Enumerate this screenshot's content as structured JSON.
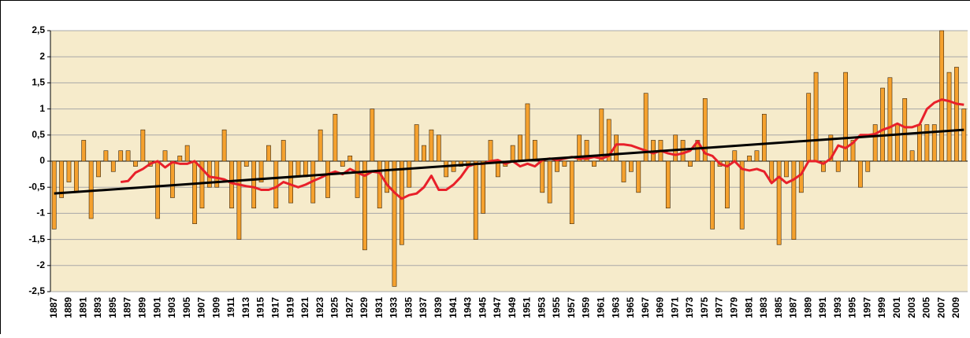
{
  "chart_data": {
    "type": "bar",
    "categories": [
      "1887",
      null,
      "1889",
      null,
      "1891",
      null,
      "1893",
      null,
      "1895",
      null,
      "1897",
      null,
      "1899",
      null,
      "1901",
      null,
      "1903",
      null,
      "1905",
      null,
      "1907",
      null,
      "1909",
      null,
      "1911",
      null,
      "1913",
      null,
      "1915",
      null,
      "1917",
      null,
      "1919",
      null,
      "1921",
      null,
      "1923",
      null,
      "1925",
      null,
      "1927",
      null,
      "1929",
      null,
      "1931",
      null,
      "1933",
      null,
      "1935",
      null,
      "1937",
      null,
      "1939",
      null,
      "1941",
      null,
      "1943",
      null,
      "1945",
      null,
      "1947",
      null,
      "1949",
      null,
      "1951",
      null,
      "1953",
      null,
      "1955",
      null,
      "1957",
      null,
      "1959",
      null,
      "1961",
      null,
      "1963",
      null,
      "1965",
      null,
      "1967",
      null,
      "1969",
      null,
      "1971",
      null,
      "1973",
      null,
      "1975",
      null,
      "1977",
      null,
      "1979",
      null,
      "1981",
      null,
      "1983",
      null,
      "1985",
      null,
      "1987",
      null,
      "1989",
      null,
      "1991",
      null,
      "1993",
      null,
      "1995",
      null,
      "1997",
      null,
      "1999",
      null,
      "2001",
      null,
      "2003",
      null,
      "2005",
      null,
      "2007",
      null,
      "2009",
      null
    ],
    "series": [
      {
        "type": "bar",
        "color": "#f5a12e",
        "values": [
          -1.3,
          -0.7,
          -0.4,
          -0.6,
          0.4,
          -1.1,
          -0.3,
          0.2,
          -0.2,
          0.2,
          0.2,
          -0.1,
          0.6,
          -0.1,
          -1.1,
          0.2,
          -0.7,
          0.1,
          0.3,
          -1.2,
          -0.9,
          -0.5,
          -0.5,
          0.6,
          -0.9,
          -1.5,
          -0.1,
          -0.9,
          -0.4,
          0.3,
          -0.9,
          0.4,
          -0.8,
          -0.3,
          -0.3,
          -0.8,
          0.6,
          -0.7,
          0.9,
          -0.1,
          0.1,
          -0.7,
          -1.7,
          1.0,
          -0.9,
          -0.6,
          -2.4,
          -1.6,
          -0.5,
          0.7,
          0.3,
          0.6,
          0.5,
          -0.3,
          -0.2,
          -0.1,
          -0.1,
          -1.5,
          -1.0,
          0.4,
          -0.3,
          -0.1,
          0.3,
          0.5,
          1.1,
          0.4,
          -0.6,
          -0.8,
          -0.2,
          -0.1,
          -1.2,
          0.5,
          0.4,
          -0.1,
          1.0,
          0.8,
          0.5,
          -0.4,
          -0.2,
          -0.6,
          1.3,
          0.4,
          0.4,
          -0.9,
          0.5,
          0.4,
          -0.1,
          0.4,
          1.2,
          -1.3,
          -0.1,
          -0.9,
          0.2,
          -1.3,
          0.1,
          0.2,
          0.9,
          -0.4,
          -1.6,
          -0.3,
          -1.5,
          -0.6,
          1.3,
          1.7,
          -0.2,
          0.5,
          -0.2,
          1.7,
          0.4,
          -0.5,
          -0.2,
          0.7,
          1.4,
          1.6,
          0.7,
          1.2,
          0.2,
          0.7,
          0.7,
          0.7,
          2.5,
          1.7,
          1.8,
          1.0
        ]
      },
      {
        "type": "line",
        "color": "#e8202a",
        "values": [
          null,
          null,
          null,
          null,
          null,
          null,
          null,
          null,
          null,
          -0.4,
          -0.38,
          -0.22,
          -0.15,
          -0.05,
          0,
          -0.12,
          -0.02,
          -0.05,
          -0.05,
          0,
          -0.15,
          -0.3,
          -0.32,
          -0.35,
          -0.42,
          -0.45,
          -0.48,
          -0.5,
          -0.55,
          -0.55,
          -0.5,
          -0.4,
          -0.45,
          -0.5,
          -0.45,
          -0.38,
          -0.32,
          -0.25,
          -0.2,
          -0.25,
          -0.15,
          -0.22,
          -0.28,
          -0.2,
          -0.22,
          -0.45,
          -0.6,
          -0.72,
          -0.65,
          -0.62,
          -0.5,
          -0.28,
          -0.55,
          -0.55,
          -0.45,
          -0.3,
          -0.1,
          -0.05,
          -0.05,
          0,
          0.02,
          -0.05,
          0,
          -0.1,
          -0.05,
          -0.1,
          0.02,
          0.05,
          0.02,
          0.05,
          0.08,
          0.05,
          0.05,
          0.08,
          0.05,
          0.1,
          0.32,
          0.32,
          0.3,
          0.25,
          0.2,
          0.15,
          0.2,
          0.15,
          0.12,
          0.15,
          0.2,
          0.38,
          0.15,
          0.1,
          -0.05,
          -0.1,
          0,
          -0.15,
          -0.18,
          -0.15,
          -0.2,
          -0.42,
          -0.3,
          -0.42,
          -0.35,
          -0.25,
          0,
          0,
          -0.05,
          0.05,
          0.3,
          0.25,
          0.35,
          0.5,
          0.5,
          0.52,
          0.6,
          0.65,
          0.72,
          0.65,
          0.65,
          0.7,
          1.0,
          1.12,
          1.18,
          1.15,
          1.1,
          1.08
        ]
      }
    ],
    "trend": {
      "color": "#000000",
      "values": [
        -0.62,
        0.6
      ]
    },
    "ylim": [
      -2.5,
      2.5
    ],
    "yticks": [
      {
        "value": -2.5,
        "label": "-2,5"
      },
      -2,
      {
        "value": -1.5,
        "label": "-1,5"
      },
      -1,
      {
        "value": -0.5,
        "label": "-0,5"
      },
      0,
      {
        "value": 0.5,
        "label": "0,5"
      },
      1,
      {
        "value": 1.5,
        "label": "1,5"
      },
      2,
      {
        "value": 2.5,
        "label": "2,5"
      }
    ],
    "grid": true,
    "background": "#f6ebcb"
  }
}
